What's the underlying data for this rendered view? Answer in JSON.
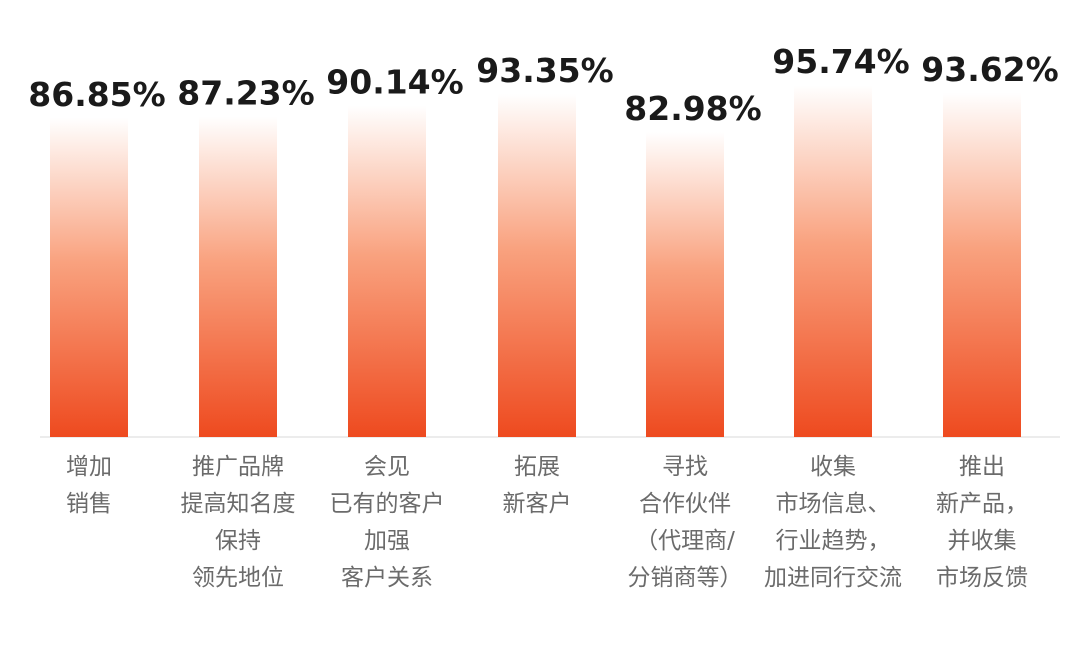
{
  "chart_data": {
    "type": "bar",
    "categories": [
      [
        "增加",
        "销售"
      ],
      [
        "推广品牌",
        "提高知名度",
        "保持",
        "领先地位"
      ],
      [
        "会见",
        "已有的客户",
        "加强",
        "客户关系"
      ],
      [
        "拓展",
        "新客户"
      ],
      [
        "寻找",
        "合作伙伴",
        "（代理商/",
        "分销商等）"
      ],
      [
        "收集",
        "市场信息、",
        "行业趋势，",
        "加进同行交流"
      ],
      [
        "推出",
        "新产品，",
        "并收集",
        "市场反馈"
      ]
    ],
    "values": [
      86.85,
      87.23,
      90.14,
      93.35,
      82.98,
      95.74,
      93.62
    ],
    "value_labels": [
      "86.85%",
      "87.23%",
      "90.14%",
      "93.35%",
      "82.98%",
      "95.74%",
      "93.62%"
    ],
    "title": "",
    "xlabel": "",
    "ylabel": "",
    "bar_color_bottom": "#ee4a1f",
    "bar_color_top": "#ffffff",
    "axis_color": "#e6e6e6",
    "grid": false,
    "legend": "none"
  }
}
